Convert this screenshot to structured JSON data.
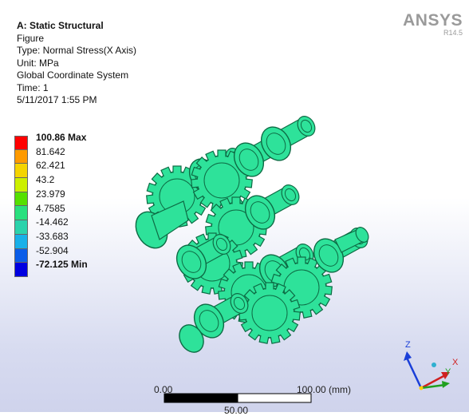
{
  "info": {
    "title": "A: Static Structural",
    "lines": [
      "Figure",
      "Type: Normal Stress(X Axis)",
      "Unit: MPa",
      "Global Coordinate System",
      "Time: 1",
      "5/11/2017 1:55 PM"
    ]
  },
  "logo": {
    "name": "ANSYS",
    "version": "R14.5"
  },
  "legend": {
    "labels": [
      "100.86 Max",
      "81.642",
      "62.421",
      "43.2",
      "23.979",
      "4.7585",
      "-14.462",
      "-33.683",
      "-52.904",
      "-72.125 Min"
    ],
    "colors": [
      "#ff0000",
      "#ff9a00",
      "#f5d400",
      "#ccf000",
      "#55e000",
      "#29e07e",
      "#2ad3ac",
      "#18b0e8",
      "#0a5de8",
      "#0000e0"
    ]
  },
  "scale": {
    "start": "0.00",
    "end": "100.00 (mm)",
    "mid": "50.00"
  },
  "triad": {
    "z": "Z",
    "x": "X",
    "y": "Y"
  },
  "colors": {
    "model": "#2ee29a",
    "model_edge": "#0d6b44"
  }
}
